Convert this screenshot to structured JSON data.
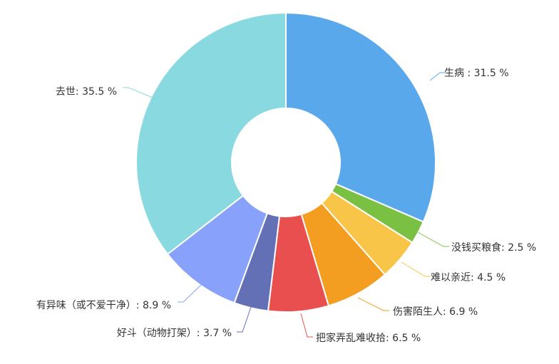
{
  "chart_data": {
    "type": "pie",
    "donut": true,
    "title": "",
    "slices": [
      {
        "label": "生病",
        "value": 31.5,
        "color": "#5aa8ec",
        "text": "生病 : 31.5 %"
      },
      {
        "label": "没钱买粮食",
        "value": 2.5,
        "color": "#7ac143",
        "text": "没钱买粮食: 2.5 %"
      },
      {
        "label": "难以亲近",
        "value": 4.5,
        "color": "#f9c548",
        "text": "难以亲近: 4.5 %"
      },
      {
        "label": "伤害陌生人",
        "value": 6.9,
        "color": "#f39d21",
        "text": "伤害陌生人: 6.9 %"
      },
      {
        "label": "把家弄乱难收拾",
        "value": 6.5,
        "color": "#e94f4f",
        "text": "把家弄乱难收拾: 6.5 %"
      },
      {
        "label": "好斗（动物打架）",
        "value": 3.7,
        "color": "#6470b6",
        "text": "好斗（动物打架）: 3.7 %"
      },
      {
        "label": "有异味（或不爱干净）",
        "value": 8.9,
        "color": "#88a1fb",
        "text": "有异味（或不爱干净）: 8.9 %"
      },
      {
        "label": "去世",
        "value": 35.5,
        "color": "#88d9e0",
        "text": "去世: 35.5 %"
      }
    ]
  }
}
